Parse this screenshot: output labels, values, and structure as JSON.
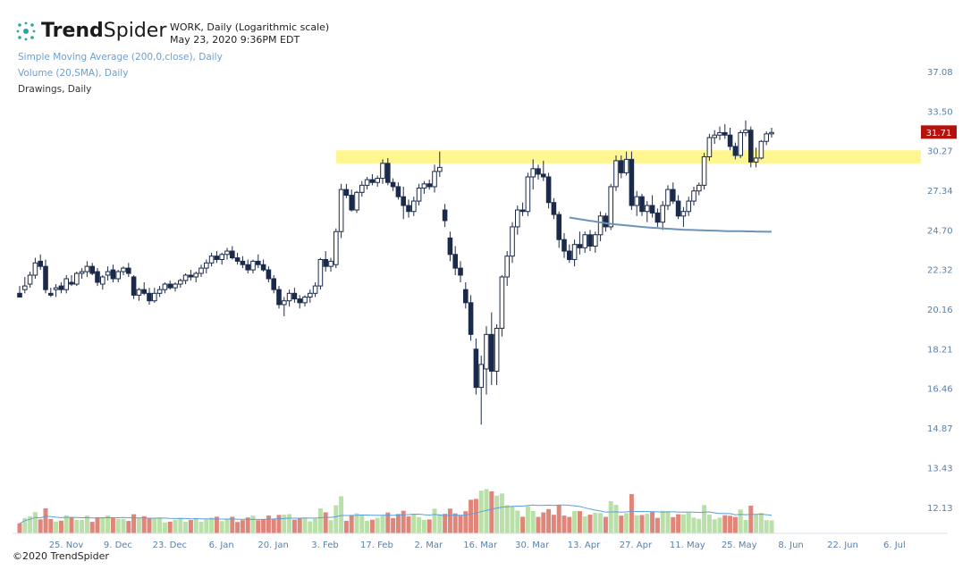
{
  "header": {
    "brand_bold": "Trend",
    "brand_regular": "Spider",
    "symbol_line": "WORK, Daily (Logarithmic scale)",
    "date_line": "May 23, 2020 9:36PM EDT",
    "indicators": [
      {
        "label": "Simple Moving Average (200,0,close), Daily",
        "color": "#6a9fd4"
      },
      {
        "label": "Volume (20,SMA), Daily",
        "color": "#6a9fd4"
      },
      {
        "label": "Drawings, Daily",
        "color": "#333333"
      }
    ]
  },
  "footer": "©2020 TrendSpider",
  "colors": {
    "up": "#ffffff",
    "down": "#1b2a4a",
    "wick": "#1b2a4a",
    "vol_up": "#b8e0a8",
    "vol_down": "#e0857a",
    "vol_sma": "#5aa0d8",
    "sma200": "#6d94b8",
    "zone": "#fff68f",
    "last_price_bg": "#b5120e",
    "axis_text": "#5a7fa8"
  },
  "chart_data": {
    "type": "candlestick",
    "symbol": "WORK",
    "scale": "log",
    "y_ticks": [
      "37.08",
      "33.50",
      "30.27",
      "27.34",
      "24.70",
      "22.32",
      "20.16",
      "18.21",
      "16.46",
      "14.87",
      "13.43",
      "12.13"
    ],
    "x_ticks": [
      "25. Nov",
      "9. Dec",
      "23. Dec",
      "6. Jan",
      "20. Jan",
      "3. Feb",
      "17. Feb",
      "2. Mar",
      "16. Mar",
      "30. Mar",
      "13. Apr",
      "27. Apr",
      "11. May",
      "25. May",
      "8. Jun",
      "22. Jun",
      "6. Jul"
    ],
    "last_price": "31.71",
    "resistance_zone": [
      29.3,
      30.3
    ],
    "candles": [
      [
        21.0,
        21.4,
        20.9,
        20.8
      ],
      [
        21.2,
        21.9,
        21.0,
        21.4
      ],
      [
        21.5,
        22.2,
        21.3,
        22.0
      ],
      [
        22.0,
        23.0,
        21.8,
        22.7
      ],
      [
        22.8,
        23.2,
        22.3,
        22.5
      ],
      [
        22.5,
        22.9,
        21.0,
        21.2
      ],
      [
        21.0,
        21.3,
        20.8,
        20.9
      ],
      [
        21.2,
        21.5,
        20.8,
        21.3
      ],
      [
        21.4,
        21.6,
        21.0,
        21.2
      ],
      [
        21.2,
        22.0,
        21.0,
        21.8
      ],
      [
        21.6,
        22.0,
        21.4,
        21.5
      ],
      [
        21.5,
        22.2,
        21.4,
        22.1
      ],
      [
        22.1,
        22.4,
        21.8,
        22.2
      ],
      [
        22.2,
        22.8,
        21.9,
        22.5
      ],
      [
        22.5,
        22.7,
        22.0,
        22.1
      ],
      [
        22.2,
        22.4,
        21.4,
        21.6
      ],
      [
        21.5,
        22.0,
        21.2,
        21.9
      ],
      [
        22.0,
        22.5,
        21.7,
        22.2
      ],
      [
        22.3,
        22.6,
        21.6,
        21.8
      ],
      [
        21.8,
        22.3,
        21.6,
        22.2
      ],
      [
        22.2,
        22.5,
        22.0,
        22.4
      ],
      [
        22.4,
        22.7,
        21.9,
        22.1
      ],
      [
        21.9,
        22.0,
        20.7,
        20.9
      ],
      [
        20.9,
        21.3,
        20.6,
        21.2
      ],
      [
        21.2,
        21.6,
        20.9,
        21.0
      ],
      [
        21.0,
        21.3,
        20.4,
        20.6
      ],
      [
        20.6,
        21.3,
        20.5,
        21.0
      ],
      [
        21.0,
        21.4,
        20.8,
        21.2
      ],
      [
        21.2,
        21.6,
        21.0,
        21.5
      ],
      [
        21.5,
        21.7,
        21.2,
        21.3
      ],
      [
        21.3,
        21.6,
        21.1,
        21.5
      ],
      [
        21.5,
        21.8,
        21.3,
        21.7
      ],
      [
        21.7,
        22.1,
        21.5,
        22.0
      ],
      [
        22.0,
        22.3,
        21.7,
        21.9
      ],
      [
        21.9,
        22.2,
        21.6,
        22.1
      ],
      [
        22.1,
        22.6,
        21.9,
        22.4
      ],
      [
        22.4,
        22.9,
        22.1,
        22.7
      ],
      [
        22.7,
        23.3,
        22.5,
        23.1
      ],
      [
        23.1,
        23.4,
        22.7,
        22.9
      ],
      [
        22.9,
        23.3,
        22.6,
        23.2
      ],
      [
        23.2,
        23.6,
        22.9,
        23.4
      ],
      [
        23.4,
        23.7,
        22.9,
        23.0
      ],
      [
        23.0,
        23.3,
        22.6,
        22.8
      ],
      [
        22.8,
        23.1,
        22.4,
        22.6
      ],
      [
        22.6,
        22.9,
        22.1,
        22.3
      ],
      [
        22.3,
        22.9,
        22.1,
        22.8
      ],
      [
        22.8,
        23.2,
        22.4,
        22.6
      ],
      [
        22.6,
        22.9,
        22.2,
        22.3
      ],
      [
        22.3,
        22.5,
        21.6,
        21.8
      ],
      [
        21.8,
        22.0,
        21.0,
        21.2
      ],
      [
        21.2,
        21.4,
        20.2,
        20.4
      ],
      [
        20.4,
        20.8,
        19.8,
        20.6
      ],
      [
        20.6,
        21.2,
        20.3,
        21.0
      ],
      [
        21.0,
        21.3,
        20.5,
        20.7
      ],
      [
        20.7,
        20.9,
        20.2,
        20.5
      ],
      [
        20.5,
        20.9,
        20.3,
        20.8
      ],
      [
        20.8,
        21.2,
        20.5,
        21.0
      ],
      [
        21.0,
        21.6,
        20.8,
        21.4
      ],
      [
        21.4,
        23.0,
        21.2,
        22.9
      ],
      [
        22.9,
        23.4,
        22.2,
        22.5
      ],
      [
        22.5,
        23.0,
        22.2,
        22.8
      ],
      [
        22.6,
        24.8,
        22.4,
        24.6
      ],
      [
        24.6,
        27.8,
        24.2,
        27.4
      ],
      [
        27.4,
        27.8,
        26.8,
        27.0
      ],
      [
        27.0,
        27.4,
        25.9,
        26.0
      ],
      [
        26.0,
        27.3,
        25.8,
        27.2
      ],
      [
        27.2,
        28.0,
        26.9,
        27.7
      ],
      [
        27.7,
        28.3,
        27.4,
        28.1
      ],
      [
        28.1,
        28.5,
        27.7,
        27.9
      ],
      [
        27.9,
        28.4,
        27.6,
        28.2
      ],
      [
        28.2,
        29.6,
        27.8,
        29.3
      ],
      [
        29.3,
        29.7,
        27.7,
        27.9
      ],
      [
        27.9,
        28.2,
        27.3,
        27.6
      ],
      [
        27.6,
        27.9,
        26.7,
        26.9
      ],
      [
        26.9,
        27.6,
        25.4,
        26.3
      ],
      [
        26.3,
        26.7,
        25.5,
        25.9
      ],
      [
        25.9,
        26.9,
        25.6,
        26.6
      ],
      [
        26.6,
        27.8,
        26.3,
        27.5
      ],
      [
        27.5,
        28.0,
        27.1,
        27.8
      ],
      [
        27.8,
        28.1,
        27.4,
        27.6
      ],
      [
        27.6,
        29.2,
        27.2,
        28.7
      ],
      [
        28.7,
        30.2,
        28.3,
        29.0
      ],
      [
        26.0,
        26.4,
        24.9,
        25.3
      ],
      [
        24.2,
        24.6,
        22.8,
        23.2
      ],
      [
        23.2,
        23.7,
        22.0,
        22.4
      ],
      [
        22.4,
        22.8,
        21.6,
        22.0
      ],
      [
        21.2,
        21.6,
        20.2,
        20.5
      ],
      [
        20.5,
        20.9,
        18.6,
        18.9
      ],
      [
        18.2,
        18.7,
        16.2,
        16.5
      ],
      [
        16.5,
        17.9,
        15.0,
        17.5
      ],
      [
        17.3,
        19.3,
        16.2,
        18.9
      ],
      [
        18.9,
        20.0,
        16.6,
        17.2
      ],
      [
        17.2,
        19.4,
        16.6,
        19.2
      ],
      [
        19.2,
        22.0,
        18.8,
        21.9
      ],
      [
        21.9,
        23.4,
        21.4,
        23.1
      ],
      [
        23.1,
        25.2,
        22.7,
        24.9
      ],
      [
        24.9,
        26.3,
        24.4,
        26.0
      ],
      [
        26.0,
        26.5,
        25.6,
        25.9
      ],
      [
        25.9,
        28.6,
        25.6,
        28.3
      ],
      [
        28.3,
        29.6,
        27.4,
        28.9
      ],
      [
        28.9,
        29.2,
        28.1,
        28.5
      ],
      [
        28.5,
        29.5,
        28.0,
        28.3
      ],
      [
        28.3,
        28.6,
        26.1,
        26.5
      ],
      [
        26.5,
        26.8,
        25.4,
        25.7
      ],
      [
        25.7,
        25.9,
        23.6,
        24.1
      ],
      [
        24.1,
        24.5,
        23.0,
        23.4
      ],
      [
        23.4,
        23.8,
        22.7,
        22.9
      ],
      [
        22.9,
        24.1,
        22.5,
        23.8
      ],
      [
        23.8,
        24.6,
        23.2,
        23.6
      ],
      [
        23.6,
        24.6,
        23.3,
        24.4
      ],
      [
        24.4,
        24.7,
        23.4,
        23.7
      ],
      [
        23.7,
        24.6,
        23.3,
        24.4
      ],
      [
        24.4,
        25.9,
        24.0,
        25.6
      ],
      [
        25.6,
        25.8,
        24.6,
        24.9
      ],
      [
        24.9,
        27.8,
        24.7,
        27.6
      ],
      [
        27.6,
        29.9,
        27.3,
        29.5
      ],
      [
        29.5,
        29.9,
        28.2,
        28.6
      ],
      [
        28.6,
        30.2,
        28.4,
        29.6
      ],
      [
        29.6,
        30.2,
        26.0,
        26.3
      ],
      [
        26.3,
        27.3,
        25.6,
        26.9
      ],
      [
        26.9,
        27.1,
        25.6,
        25.9
      ],
      [
        25.9,
        26.6,
        25.2,
        26.3
      ],
      [
        26.3,
        27.0,
        25.5,
        25.8
      ],
      [
        25.8,
        26.1,
        24.9,
        25.2
      ],
      [
        25.2,
        26.6,
        24.7,
        26.3
      ],
      [
        26.3,
        27.7,
        26.0,
        27.4
      ],
      [
        27.4,
        27.9,
        26.4,
        26.6
      ],
      [
        26.6,
        27.0,
        25.4,
        25.6
      ],
      [
        25.6,
        26.2,
        24.9,
        25.9
      ],
      [
        25.9,
        26.9,
        25.6,
        26.6
      ],
      [
        26.6,
        27.6,
        26.3,
        27.3
      ],
      [
        27.3,
        27.9,
        27.0,
        27.7
      ],
      [
        27.7,
        30.1,
        27.4,
        29.8
      ],
      [
        29.8,
        31.6,
        29.5,
        31.3
      ],
      [
        31.3,
        31.9,
        30.8,
        31.5
      ],
      [
        31.5,
        32.2,
        31.1,
        31.7
      ],
      [
        31.7,
        32.4,
        31.2,
        31.5
      ],
      [
        31.5,
        32.1,
        30.3,
        30.6
      ],
      [
        30.6,
        30.9,
        29.6,
        29.9
      ],
      [
        29.9,
        31.9,
        29.7,
        31.7
      ],
      [
        31.7,
        32.7,
        31.4,
        31.9
      ],
      [
        31.9,
        32.2,
        29.0,
        29.4
      ],
      [
        29.4,
        30.5,
        29.0,
        29.7
      ],
      [
        29.7,
        31.1,
        29.6,
        31.0
      ],
      [
        31.0,
        31.8,
        30.7,
        31.6
      ],
      [
        31.6,
        32.1,
        31.3,
        31.71
      ]
    ],
    "sma200": [
      25.5,
      25.45,
      25.4,
      25.35,
      25.3,
      25.25,
      25.2,
      25.15,
      25.1,
      25.07,
      25.04,
      25.01,
      24.98,
      24.95,
      24.92,
      24.89,
      24.86,
      24.84,
      24.82,
      24.8,
      24.78,
      24.76,
      24.74,
      24.72,
      24.71,
      24.7,
      24.69,
      24.68,
      24.67,
      24.66,
      24.65,
      24.64,
      24.63,
      24.63,
      24.62,
      24.62,
      24.61,
      24.61,
      24.6,
      24.6,
      24.59,
      24.59
    ],
    "volume_series": "relative"
  }
}
